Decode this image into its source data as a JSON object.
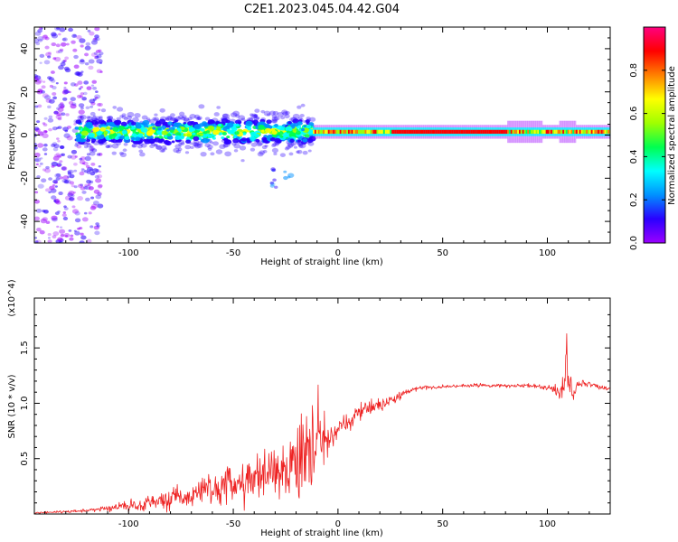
{
  "chart_data": [
    {
      "type": "heatmap",
      "title": "C2E1.2023.045.04.42.G04",
      "xlabel": "Height of straight line (km)",
      "ylabel": "Frequency (Hz)",
      "xlim": [
        -145,
        130
      ],
      "ylim": [
        -50,
        50
      ],
      "x_ticks": [
        -100,
        -50,
        0,
        50,
        100
      ],
      "y_ticks": [
        -40,
        -20,
        0,
        20,
        40
      ],
      "colorbar": {
        "label": "Normalized spectral amplitude",
        "range": [
          0,
          1
        ],
        "ticks": [
          0.0,
          0.2,
          0.4,
          0.6,
          0.8
        ],
        "colormap": [
          "#9b00ff",
          "#2a00ff",
          "#0090ff",
          "#00ffff",
          "#00ff50",
          "#a0ff00",
          "#ffff00",
          "#ff8000",
          "#ff0000",
          "#ff0080"
        ]
      },
      "features": [
        {
          "segment": "scattered noise",
          "x_range": [
            -145,
            -113
          ],
          "freq_range": [
            -50,
            50
          ],
          "amplitude": 0.05
        },
        {
          "segment": "broad band",
          "x_range": [
            -125,
            -12
          ],
          "center_freq": 1.5,
          "half_width_hz": 8,
          "amplitude": 0.45
        },
        {
          "segment": "weak trace",
          "x_range": [
            -32,
            -22
          ],
          "freq_range": [
            -25,
            -15
          ],
          "amplitude": 0.15
        },
        {
          "segment": "narrow line",
          "x_range": [
            -12,
            130
          ],
          "center_freq": 1.5,
          "half_width_hz": 2,
          "amplitude": 0.85
        }
      ]
    },
    {
      "type": "line",
      "xlabel": "Height of straight line (km)",
      "ylabel": "SNR (10 * v/v)",
      "y_multiplier": "(x10^4)",
      "xlim": [
        -145,
        130
      ],
      "ylim": [
        0,
        1.95
      ],
      "x_ticks": [
        -100,
        -50,
        0,
        50,
        100
      ],
      "y_ticks": [
        0.5,
        1.0,
        1.5
      ],
      "color": "#ee2222",
      "series": [
        {
          "x": [
            -145,
            -130,
            -115,
            -100,
            -90,
            -80,
            -70,
            -60,
            -50,
            -40,
            -30,
            -20,
            -15,
            -10,
            -5,
            0,
            5,
            10,
            15,
            20,
            25,
            30,
            35,
            40,
            50,
            60,
            70,
            80,
            90,
            95,
            100,
            105,
            108,
            110,
            112,
            115,
            120,
            125,
            130
          ],
          "y": [
            0.01,
            0.02,
            0.04,
            0.08,
            0.1,
            0.13,
            0.16,
            0.2,
            0.24,
            0.3,
            0.36,
            0.45,
            0.55,
            0.62,
            0.68,
            0.76,
            0.85,
            0.92,
            0.95,
            0.98,
            1.02,
            1.08,
            1.12,
            1.14,
            1.15,
            1.16,
            1.16,
            1.16,
            1.16,
            1.15,
            1.14,
            1.13,
            1.1,
            1.4,
            1.05,
            1.18,
            1.18,
            1.14,
            1.13
          ]
        }
      ],
      "noise_envelope": {
        "x": [
          -145,
          -115,
          -100,
          -80,
          -60,
          -45,
          -30,
          -20,
          -12,
          -8,
          -3,
          0,
          8,
          15,
          25,
          35,
          50,
          100,
          108,
          112,
          130
        ],
        "amplitude": [
          0.005,
          0.02,
          0.05,
          0.1,
          0.16,
          0.22,
          0.28,
          0.32,
          0.4,
          0.3,
          0.12,
          0.1,
          0.09,
          0.08,
          0.05,
          0.02,
          0.015,
          0.02,
          0.1,
          0.05,
          0.01
        ]
      }
    }
  ]
}
